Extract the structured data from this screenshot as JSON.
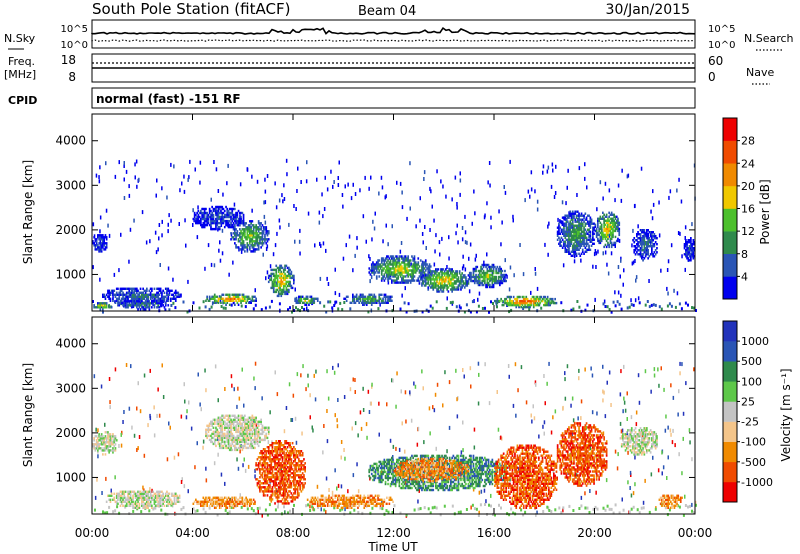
{
  "header": {
    "station": "South Pole Station (fitACF)",
    "beam": "Beam 04",
    "date": "30/Jan/2015"
  },
  "top_panel": {
    "left_label": "N.Sky",
    "right_label": "N.Search",
    "left_ticks": [
      "10^5",
      "10^0"
    ],
    "right_ticks": [
      "10^5",
      "10^0"
    ]
  },
  "freq_panel": {
    "left_label_1": "Freq.",
    "left_label_2": "[MHz]",
    "left_ticks": [
      "18",
      "8"
    ],
    "right_label": "Nave",
    "right_ticks": [
      "60",
      "0"
    ]
  },
  "cpid": {
    "label": "CPID",
    "value": "normal (fast) -151 RF"
  },
  "colors": {
    "power": [
      "#0000ee",
      "#2a55b5",
      "#2f8a4c",
      "#4cc02c",
      "#f0c800",
      "#f08a00",
      "#f04b00",
      "#ee0000"
    ],
    "velocity": [
      "#ee0000",
      "#f04b00",
      "#f08a00",
      "#f4c58a",
      "#c4c4c4",
      "#5ec84a",
      "#2f8a4c",
      "#2a55b5",
      "#2233bb"
    ]
  },
  "chart_data": [
    {
      "type": "heatmap",
      "name": "power",
      "xlabel": "Time UT",
      "ylabel": "Slant Range [km]",
      "xlim": [
        0,
        24
      ],
      "ylim": [
        180,
        4600
      ],
      "x_ticks": [
        "00:00",
        "04:00",
        "08:00",
        "12:00",
        "16:00",
        "20:00",
        "00:00"
      ],
      "y_ticks": [
        1000,
        2000,
        3000,
        4000
      ],
      "colorbar": {
        "label": "Power [dB]",
        "range": [
          0,
          32
        ],
        "ticks": [
          "28",
          "24",
          "20",
          "16",
          "12",
          "8",
          "4"
        ]
      },
      "regions": [
        {
          "t": [
            0.0,
            0.6
          ],
          "r": [
            1500,
            1900
          ],
          "level": 6
        },
        {
          "t": [
            0.0,
            0.8
          ],
          "r": [
            200,
            350
          ],
          "level": 22
        },
        {
          "t": [
            0.4,
            3.5
          ],
          "r": [
            300,
            700
          ],
          "level": 8
        },
        {
          "t": [
            1.0,
            3.0
          ],
          "r": [
            200,
            400
          ],
          "level": 10
        },
        {
          "t": [
            4.0,
            6.0
          ],
          "r": [
            2000,
            2500
          ],
          "level": 6
        },
        {
          "t": [
            4.5,
            6.5
          ],
          "r": [
            300,
            550
          ],
          "level": 26
        },
        {
          "t": [
            5.5,
            7.0
          ],
          "r": [
            1500,
            2200
          ],
          "level": 16
        },
        {
          "t": [
            7.0,
            8.0
          ],
          "r": [
            500,
            1200
          ],
          "level": 22
        },
        {
          "t": [
            8.0,
            9.0
          ],
          "r": [
            300,
            500
          ],
          "level": 18
        },
        {
          "t": [
            10.0,
            12.0
          ],
          "r": [
            300,
            550
          ],
          "level": 14
        },
        {
          "t": [
            11.0,
            13.5
          ],
          "r": [
            800,
            1400
          ],
          "level": 18
        },
        {
          "t": [
            13.0,
            15.0
          ],
          "r": [
            600,
            1100
          ],
          "level": 20
        },
        {
          "t": [
            15.0,
            16.5
          ],
          "r": [
            700,
            1200
          ],
          "level": 16
        },
        {
          "t": [
            16.0,
            18.5
          ],
          "r": [
            250,
            500
          ],
          "level": 28
        },
        {
          "t": [
            18.5,
            20.0
          ],
          "r": [
            1400,
            2400
          ],
          "level": 12
        },
        {
          "t": [
            20.0,
            21.0
          ],
          "r": [
            1600,
            2400
          ],
          "level": 20
        },
        {
          "t": [
            21.5,
            22.5
          ],
          "r": [
            1300,
            2000
          ],
          "level": 8
        },
        {
          "t": [
            23.5,
            24.0
          ],
          "r": [
            1300,
            1800
          ],
          "level": 6
        }
      ]
    },
    {
      "type": "heatmap",
      "name": "velocity",
      "xlabel": "Time UT",
      "ylabel": "Slant Range [km]",
      "xlim": [
        0,
        24
      ],
      "ylim": [
        180,
        4600
      ],
      "x_ticks": [
        "00:00",
        "04:00",
        "08:00",
        "12:00",
        "16:00",
        "20:00",
        "00:00"
      ],
      "y_ticks": [
        1000,
        2000,
        3000,
        4000
      ],
      "colorbar": {
        "label": "Velocity [m s⁻¹]",
        "ticks": [
          "1000",
          "500",
          "100",
          "25",
          "-25",
          "-100",
          "-500",
          "-1000"
        ]
      },
      "regions": [
        {
          "t": [
            0.0,
            1.0
          ],
          "r": [
            1500,
            2000
          ],
          "level": 4
        },
        {
          "t": [
            0.5,
            3.5
          ],
          "r": [
            300,
            700
          ],
          "level": 4
        },
        {
          "t": [
            4.0,
            6.5
          ],
          "r": [
            300,
            550
          ],
          "level": 2
        },
        {
          "t": [
            4.5,
            7.0
          ],
          "r": [
            1600,
            2400
          ],
          "level": 4
        },
        {
          "t": [
            6.5,
            8.5
          ],
          "r": [
            400,
            1800
          ],
          "level": 1
        },
        {
          "t": [
            8.5,
            12.0
          ],
          "r": [
            300,
            600
          ],
          "level": 2
        },
        {
          "t": [
            11.0,
            16.5
          ],
          "r": [
            700,
            1500
          ],
          "level": 6
        },
        {
          "t": [
            12.0,
            15.0
          ],
          "r": [
            900,
            1400
          ],
          "level": 2
        },
        {
          "t": [
            16.0,
            18.5
          ],
          "r": [
            300,
            1700
          ],
          "level": 1
        },
        {
          "t": [
            18.5,
            20.5
          ],
          "r": [
            800,
            2200
          ],
          "level": 1
        },
        {
          "t": [
            21.0,
            22.5
          ],
          "r": [
            1500,
            2100
          ],
          "level": 4
        },
        {
          "t": [
            22.5,
            23.5
          ],
          "r": [
            300,
            600
          ],
          "level": 2
        }
      ]
    }
  ]
}
